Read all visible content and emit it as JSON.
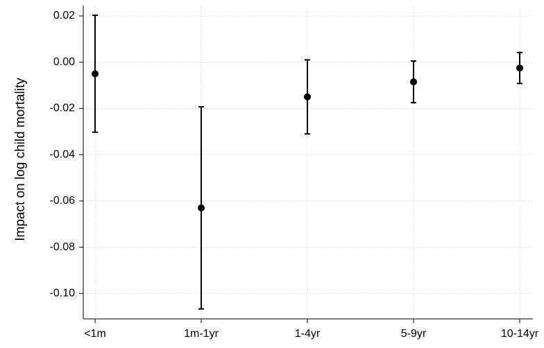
{
  "chart_data": {
    "type": "errorbar",
    "ylabel": "Impact on log child mortality",
    "categories": [
      "<1m",
      "1m-1yr",
      "1-4yr",
      "5-9yr",
      "10-14yr"
    ],
    "values": [
      -0.005,
      -0.063,
      -0.015,
      -0.0085,
      -0.0025
    ],
    "errors": [
      0.0253,
      0.0437,
      0.016,
      0.009,
      0.0067
    ],
    "color": "#000000",
    "ylim": [
      -0.111,
      0.0245
    ],
    "yticks": [
      {
        "value": -0.1,
        "label": "-0.10"
      },
      -0.08,
      -0.06,
      -0.04,
      -0.02,
      {
        "value": 0,
        "label": "0.00"
      },
      0.02
    ],
    "grid": true
  }
}
